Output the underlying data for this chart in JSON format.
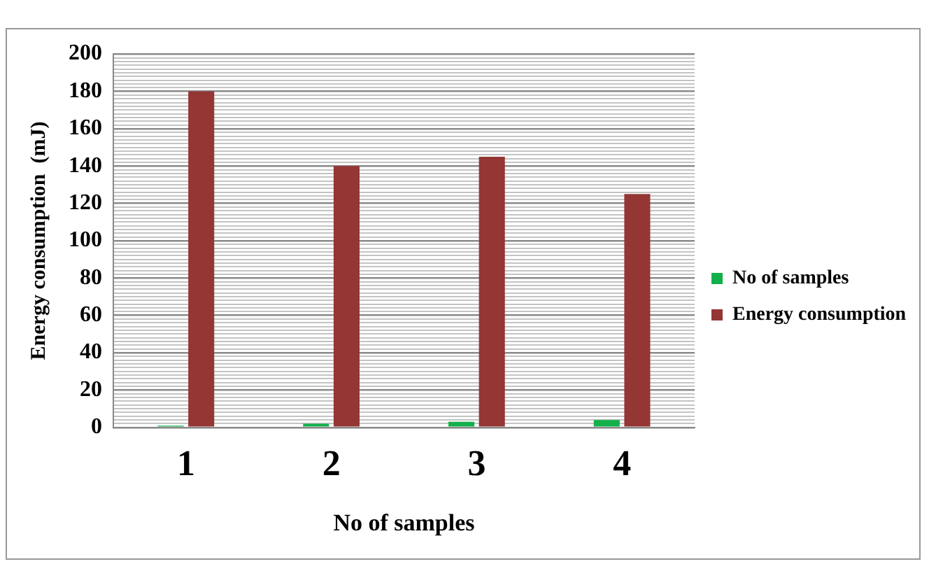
{
  "chart_data": {
    "type": "bar",
    "xlabel": "No of samples",
    "ylabel": "Energy consumption  (mJ)",
    "categories": [
      "1",
      "2",
      "3",
      "4"
    ],
    "series": [
      {
        "name": "No of samples",
        "color": "#12b04a",
        "values": [
          1,
          2,
          3,
          4
        ]
      },
      {
        "name": "Energy consumption",
        "color": "#943634",
        "values": [
          180,
          140,
          145,
          125
        ]
      }
    ],
    "ylim": [
      0,
      200
    ],
    "yticks": [
      0,
      {
        "value": 2,
        "label": null
      },
      {
        "value": 4,
        "label": null
      },
      {
        "value": 6,
        "label": null
      },
      {
        "value": 8,
        "label": null
      },
      {
        "value": 10,
        "label": null
      },
      {
        "value": 12,
        "label": null
      },
      {
        "value": 14,
        "label": null
      },
      {
        "value": 16,
        "label": null
      },
      {
        "value": 18,
        "label": null
      },
      20,
      {
        "value": 22,
        "label": null
      },
      {
        "value": 24,
        "label": null
      },
      {
        "value": 26,
        "label": null
      },
      {
        "value": 28,
        "label": null
      },
      {
        "value": 30,
        "label": null
      },
      {
        "value": 32,
        "label": null
      },
      {
        "value": 34,
        "label": null
      },
      {
        "value": 36,
        "label": null
      },
      {
        "value": 38,
        "label": null
      },
      40,
      {
        "value": 42,
        "label": null
      },
      {
        "value": 44,
        "label": null
      },
      {
        "value": 46,
        "label": null
      },
      {
        "value": 48,
        "label": null
      },
      {
        "value": 50,
        "label": null
      },
      {
        "value": 52,
        "label": null
      },
      {
        "value": 54,
        "label": null
      },
      {
        "value": 56,
        "label": null
      },
      {
        "value": 58,
        "label": null
      },
      60,
      {
        "value": 62,
        "label": null
      },
      {
        "value": 64,
        "label": null
      },
      {
        "value": 66,
        "label": null
      },
      {
        "value": 68,
        "label": null
      },
      {
        "value": 70,
        "label": null
      },
      {
        "value": 72,
        "label": null
      },
      {
        "value": 74,
        "label": null
      },
      {
        "value": 76,
        "label": null
      },
      {
        "value": 78,
        "label": null
      },
      80,
      {
        "value": 82,
        "label": null
      },
      {
        "value": 84,
        "label": null
      },
      {
        "value": 86,
        "label": null
      },
      {
        "value": 88,
        "label": null
      },
      {
        "value": 90,
        "label": null
      },
      {
        "value": 92,
        "label": null
      },
      {
        "value": 94,
        "label": null
      },
      {
        "value": 96,
        "label": null
      },
      {
        "value": 98,
        "label": null
      },
      100,
      {
        "value": 102,
        "label": null
      },
      {
        "value": 104,
        "label": null
      },
      {
        "value": 106,
        "label": null
      },
      {
        "value": 108,
        "label": null
      },
      {
        "value": 110,
        "label": null
      },
      {
        "value": 112,
        "label": null
      },
      {
        "value": 114,
        "label": null
      },
      {
        "value": 116,
        "label": null
      },
      {
        "value": 118,
        "label": null
      },
      120,
      {
        "value": 122,
        "label": null
      },
      {
        "value": 124,
        "label": null
      },
      {
        "value": 126,
        "label": null
      },
      {
        "value": 128,
        "label": null
      },
      {
        "value": 130,
        "label": null
      },
      {
        "value": 132,
        "label": null
      },
      {
        "value": 134,
        "label": null
      },
      {
        "value": 136,
        "label": null
      },
      {
        "value": 138,
        "label": null
      },
      140,
      {
        "value": 142,
        "label": null
      },
      {
        "value": 144,
        "label": null
      },
      {
        "value": 146,
        "label": null
      },
      {
        "value": 148,
        "label": null
      },
      {
        "value": 150,
        "label": null
      },
      {
        "value": 152,
        "label": null
      },
      {
        "value": 154,
        "label": null
      },
      {
        "value": 156,
        "label": null
      },
      {
        "value": 158,
        "label": null
      },
      160,
      {
        "value": 162,
        "label": null
      },
      {
        "value": 164,
        "label": null
      },
      {
        "value": 166,
        "label": null
      },
      {
        "value": 168,
        "label": null
      },
      {
        "value": 170,
        "label": null
      },
      {
        "value": 172,
        "label": null
      },
      {
        "value": 174,
        "label": null
      },
      {
        "value": 176,
        "label": null
      },
      {
        "value": 178,
        "label": null
      },
      180,
      {
        "value": 182,
        "label": null
      },
      {
        "value": 184,
        "label": null
      },
      {
        "value": 186,
        "label": null
      },
      {
        "value": 188,
        "label": null
      },
      {
        "value": 190,
        "label": null
      },
      {
        "value": 192,
        "label": null
      },
      {
        "value": 194,
        "label": null
      },
      {
        "value": 196,
        "label": null
      },
      {
        "value": 198,
        "label": null
      },
      200
    ],
    "grid": "y",
    "legend": "right"
  }
}
